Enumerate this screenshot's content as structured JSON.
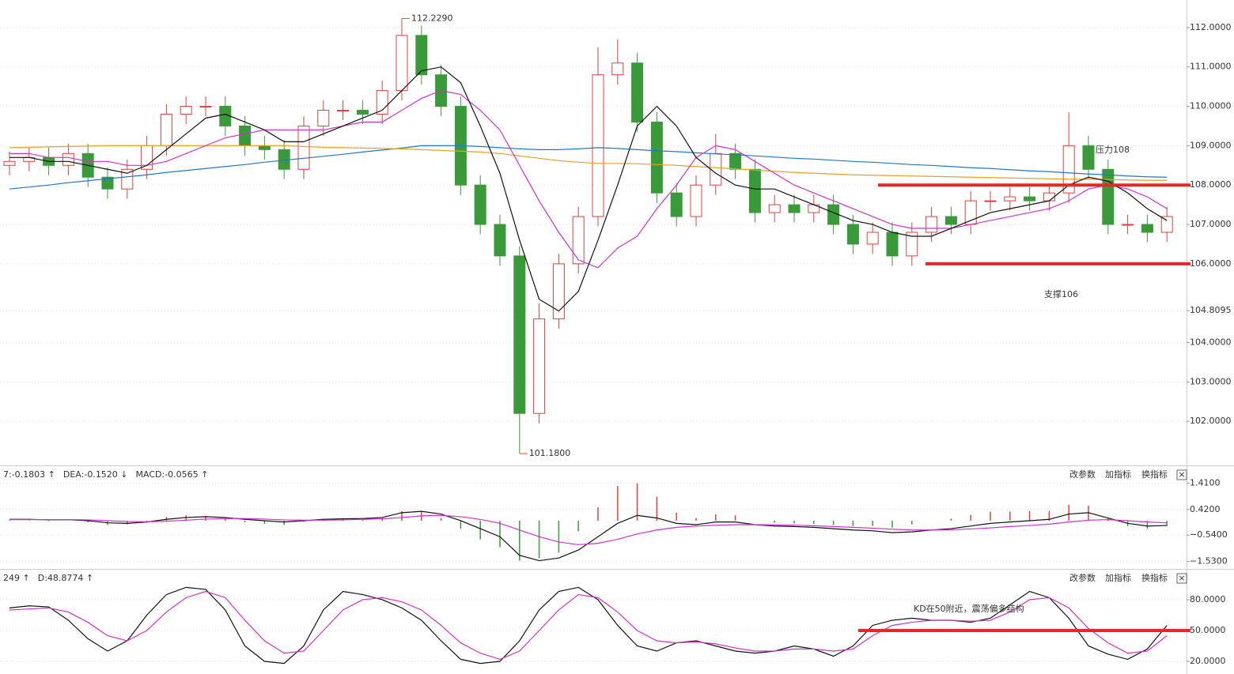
{
  "chart_data": [
    {
      "type": "candlestick",
      "open": [
        108.5,
        108.6,
        108.7,
        108.5,
        108.8,
        108.2,
        107.9,
        108.4,
        109.0,
        109.8,
        110.0,
        110.0,
        109.5,
        109.0,
        108.9,
        108.4,
        109.5,
        109.9,
        109.9,
        109.8,
        110.4,
        111.8,
        110.8,
        110.0,
        108.0,
        107.0,
        106.2,
        102.2,
        104.6,
        106.0,
        107.2,
        110.8,
        111.1,
        109.6,
        107.8,
        107.2,
        108.0,
        108.8,
        108.4,
        107.3,
        107.5,
        107.3,
        107.5,
        107.0,
        106.5,
        106.8,
        106.2,
        106.8,
        107.2,
        107.0,
        107.6,
        107.6,
        107.7,
        107.6,
        107.8,
        109.0,
        108.4,
        107.0,
        107.0,
        106.8
      ],
      "high": [
        108.85,
        108.95,
        108.95,
        109.05,
        109.05,
        108.45,
        108.65,
        109.25,
        110.05,
        110.25,
        110.25,
        110.25,
        109.75,
        109.25,
        109.15,
        109.75,
        110.15,
        110.15,
        110.15,
        110.65,
        112.229,
        112.05,
        111.05,
        110.25,
        108.25,
        107.25,
        106.45,
        105.0,
        106.25,
        107.45,
        111.5,
        111.7,
        111.35,
        109.85,
        108.05,
        108.25,
        109.3,
        109.05,
        108.65,
        107.75,
        107.75,
        107.75,
        107.75,
        107.25,
        107.05,
        107.05,
        107.05,
        107.45,
        107.45,
        107.85,
        107.85,
        107.95,
        107.95,
        108.05,
        109.85,
        109.25,
        108.65,
        107.25,
        107.25,
        107.45
      ],
      "low": [
        108.25,
        108.35,
        108.25,
        108.25,
        107.95,
        107.65,
        107.65,
        108.15,
        108.75,
        109.55,
        109.75,
        109.25,
        108.75,
        108.65,
        108.15,
        108.15,
        109.25,
        109.65,
        109.55,
        109.55,
        110.15,
        110.55,
        109.75,
        107.75,
        106.75,
        105.95,
        101.18,
        101.95,
        104.35,
        105.75,
        106.95,
        110.55,
        109.35,
        107.55,
        106.95,
        106.95,
        107.75,
        108.15,
        107.05,
        107.05,
        107.05,
        107.05,
        106.75,
        106.25,
        106.25,
        105.95,
        105.95,
        106.55,
        106.75,
        106.75,
        107.35,
        107.35,
        107.35,
        107.35,
        107.55,
        108.15,
        106.75,
        106.75,
        106.55,
        106.55
      ],
      "close": [
        108.6,
        108.7,
        108.5,
        108.8,
        108.2,
        107.9,
        108.4,
        109.0,
        109.8,
        110.0,
        110.0,
        109.5,
        109.0,
        108.9,
        108.4,
        109.5,
        109.9,
        109.9,
        109.8,
        110.4,
        111.8,
        110.8,
        110.0,
        108.0,
        107.0,
        106.2,
        102.2,
        104.6,
        106.0,
        107.2,
        110.8,
        111.1,
        109.6,
        107.8,
        107.2,
        108.0,
        108.8,
        108.4,
        107.3,
        107.5,
        107.3,
        107.5,
        107.0,
        106.5,
        106.8,
        106.2,
        106.8,
        107.2,
        107.0,
        107.6,
        107.6,
        107.7,
        107.6,
        107.8,
        109.0,
        108.4,
        107.0,
        107.0,
        106.8,
        107.2
      ],
      "up_color": "#e0403a",
      "down_color": "#3a9a3a",
      "lines": [
        {
          "color": "#1f78c8",
          "values": [
            107.9,
            107.95,
            108.0,
            108.06,
            108.11,
            108.16,
            108.21,
            108.26,
            108.32,
            108.37,
            108.42,
            108.47,
            108.52,
            108.58,
            108.63,
            108.68,
            108.73,
            108.78,
            108.84,
            108.89,
            108.94,
            109.0,
            109.0,
            109.0,
            108.98,
            108.95,
            108.92,
            108.9,
            108.9,
            108.92,
            108.95,
            108.93,
            108.9,
            108.87,
            108.85,
            108.82,
            108.79,
            108.77,
            108.74,
            108.71,
            108.68,
            108.66,
            108.63,
            108.6,
            108.58,
            108.55,
            108.52,
            108.5,
            108.47,
            108.44,
            108.42,
            108.39,
            108.36,
            108.34,
            108.31,
            108.28,
            108.26,
            108.23,
            108.21,
            108.2
          ]
        },
        {
          "color": "#e8a020",
          "values": [
            108.95,
            108.96,
            108.97,
            108.98,
            108.99,
            109.0,
            109.0,
            109.0,
            109.0,
            109.0,
            109.0,
            109.0,
            109.0,
            109.0,
            109.0,
            108.98,
            108.96,
            108.95,
            108.94,
            108.93,
            108.92,
            108.9,
            108.88,
            108.86,
            108.84,
            108.8,
            108.74,
            108.68,
            108.62,
            108.58,
            108.55,
            108.55,
            108.54,
            108.52,
            108.5,
            108.47,
            108.44,
            108.41,
            108.38,
            108.35,
            108.32,
            108.3,
            108.28,
            108.26,
            108.25,
            108.24,
            108.23,
            108.22,
            108.21,
            108.2,
            108.19,
            108.18,
            108.17,
            108.16,
            108.15,
            108.15,
            108.14,
            108.13,
            108.12,
            108.12
          ]
        },
        {
          "color": "#d030d0",
          "values": [
            108.8,
            108.8,
            108.7,
            108.7,
            108.6,
            108.6,
            108.5,
            108.5,
            108.6,
            108.8,
            109.0,
            109.2,
            109.3,
            109.4,
            109.4,
            109.4,
            109.4,
            109.5,
            109.6,
            109.6,
            109.9,
            110.2,
            110.4,
            110.3,
            109.9,
            109.4,
            108.5,
            107.6,
            106.8,
            106.1,
            105.9,
            106.4,
            106.7,
            107.4,
            108.0,
            108.7,
            109.0,
            108.9,
            108.6,
            108.3,
            108.0,
            107.8,
            107.6,
            107.4,
            107.2,
            107.0,
            106.9,
            106.9,
            106.9,
            107.0,
            107.1,
            107.2,
            107.3,
            107.4,
            107.6,
            107.9,
            108.0,
            107.9,
            107.7,
            107.4
          ]
        },
        {
          "color": "#111111",
          "values": [
            108.7,
            108.7,
            108.6,
            108.6,
            108.5,
            108.4,
            108.3,
            108.5,
            108.9,
            109.3,
            109.7,
            109.8,
            109.6,
            109.4,
            109.1,
            109.1,
            109.3,
            109.5,
            109.7,
            109.9,
            110.4,
            110.9,
            111.0,
            110.6,
            109.5,
            108.3,
            106.6,
            105.1,
            104.8,
            105.3,
            106.6,
            108.0,
            109.5,
            110.0,
            109.5,
            108.7,
            108.3,
            108.0,
            107.9,
            107.9,
            107.7,
            107.5,
            107.3,
            107.1,
            107.0,
            106.8,
            106.7,
            106.7,
            106.9,
            107.1,
            107.3,
            107.4,
            107.5,
            107.6,
            108.0,
            108.2,
            108.1,
            107.8,
            107.4,
            107.1
          ]
        }
      ],
      "extremes": [
        {
          "index": 20,
          "value": 112.229,
          "label": "112.2290"
        },
        {
          "index": 26,
          "value": 101.18,
          "label": "101.1800"
        }
      ],
      "annotations": [
        {
          "text": "压力108",
          "value": 108
        },
        {
          "text": "支撑106",
          "value": 106
        }
      ],
      "annotation_color": "#e8262a",
      "ylim": [
        100.9,
        112.7
      ],
      "yticks": [
        {
          "value": 102,
          "label": "102.0000"
        },
        {
          "value": 103,
          "label": "103.0000"
        },
        {
          "value": 104,
          "label": "104.0000"
        },
        {
          "value": 104.8095,
          "label": "104.8095"
        },
        {
          "value": 106,
          "label": "106.0000"
        },
        {
          "value": 107,
          "label": "107.0000"
        },
        {
          "value": 108,
          "label": "108.0000"
        },
        {
          "value": 109,
          "label": "109.0000"
        },
        {
          "value": 110,
          "label": "110.0000"
        },
        {
          "value": 111,
          "label": "111.0000"
        },
        {
          "value": 112,
          "label": "112.0000"
        }
      ],
      "grid": true
    },
    {
      "type": "macd",
      "header": [
        {
          "text": "7:-0.1803 ↑",
          "color": "#111111"
        },
        {
          "text": "DEA:-0.1520 ↓",
          "color": "#d030d0"
        },
        {
          "text": "MACD:-0.0565 ↑",
          "color": "#666666"
        }
      ],
      "buttons": [
        "改参数",
        "加指标",
        "换指标",
        "×"
      ],
      "histogram": [
        0.02,
        0.02,
        -0.02,
        0,
        -0.06,
        -0.16,
        -0.14,
        -0.02,
        0.14,
        0.2,
        0.18,
        0.08,
        -0.06,
        -0.12,
        -0.16,
        -0.04,
        0.06,
        0.08,
        0.06,
        0.1,
        0.36,
        0.34,
        0.1,
        -0.3,
        -0.7,
        -1.0,
        -1.5,
        -1.4,
        -1.2,
        -0.4,
        0.5,
        1.3,
        1.4,
        0.9,
        0.3,
        0.1,
        0.24,
        0.2,
        0,
        -0.08,
        -0.1,
        -0.12,
        -0.16,
        -0.2,
        -0.2,
        -0.26,
        -0.14,
        0,
        0.08,
        0.22,
        0.34,
        0.34,
        0.36,
        0.36,
        0.6,
        0.56,
        0.12,
        -0.2,
        -0.3,
        -0.2
      ],
      "lines": [
        {
          "color": "#111111",
          "values": [
            0.05,
            0.05,
            0.03,
            0.04,
            0.0,
            -0.08,
            -0.1,
            -0.05,
            0.05,
            0.12,
            0.15,
            0.12,
            0.05,
            0.0,
            -0.05,
            0.0,
            0.05,
            0.07,
            0.08,
            0.12,
            0.3,
            0.35,
            0.25,
            0.0,
            -0.3,
            -0.6,
            -1.3,
            -1.5,
            -1.4,
            -1.1,
            -0.6,
            -0.1,
            0.2,
            0.1,
            -0.1,
            -0.15,
            -0.05,
            -0.05,
            -0.15,
            -0.2,
            -0.22,
            -0.25,
            -0.3,
            -0.35,
            -0.38,
            -0.45,
            -0.42,
            -0.35,
            -0.3,
            -0.2,
            -0.1,
            -0.05,
            0.0,
            0.05,
            0.25,
            0.3,
            0.1,
            -0.1,
            -0.2,
            -0.18
          ]
        },
        {
          "color": "#d030d0",
          "values": [
            0.04,
            0.04,
            0.04,
            0.04,
            0.03,
            0.0,
            -0.03,
            -0.04,
            -0.02,
            0.02,
            0.06,
            0.08,
            0.08,
            0.06,
            0.03,
            0.02,
            0.02,
            0.03,
            0.05,
            0.07,
            0.12,
            0.18,
            0.2,
            0.15,
            0.05,
            -0.1,
            -0.35,
            -0.6,
            -0.8,
            -0.9,
            -0.85,
            -0.7,
            -0.5,
            -0.35,
            -0.25,
            -0.2,
            -0.17,
            -0.15,
            -0.15,
            -0.16,
            -0.17,
            -0.19,
            -0.22,
            -0.25,
            -0.28,
            -0.32,
            -0.35,
            -0.35,
            -0.34,
            -0.31,
            -0.27,
            -0.22,
            -0.18,
            -0.13,
            -0.05,
            0.02,
            0.04,
            0.0,
            -0.05,
            -0.08
          ]
        }
      ],
      "up_color": "#e0403a",
      "down_color": "#3a9a3a",
      "ylim": [
        -1.75,
        1.6
      ],
      "yticks": [
        {
          "value": 1.41,
          "label": "1.4100"
        },
        {
          "value": 0.42,
          "label": "0.4200"
        },
        {
          "value": -0.54,
          "label": "−0.5400"
        },
        {
          "value": -1.53,
          "label": "−1.5300"
        }
      ]
    },
    {
      "type": "kd",
      "header": [
        {
          "text": "249 ↑",
          "color": "#111111"
        },
        {
          "text": "D:48.8774 ↑",
          "color": "#d030d0"
        }
      ],
      "buttons": [
        "改参数",
        "加指标",
        "换指标",
        "×"
      ],
      "lines": [
        {
          "color": "#111111",
          "values": [
            72,
            74,
            73,
            60,
            42,
            30,
            40,
            65,
            85,
            92,
            90,
            70,
            35,
            20,
            18,
            35,
            70,
            88,
            85,
            80,
            72,
            60,
            40,
            22,
            18,
            20,
            40,
            70,
            88,
            92,
            80,
            55,
            35,
            30,
            38,
            40,
            35,
            30,
            28,
            30,
            35,
            32,
            25,
            35,
            55,
            60,
            62,
            60,
            60,
            58,
            62,
            75,
            88,
            82,
            62,
            35,
            27,
            22,
            32,
            55
          ]
        },
        {
          "color": "#d030d0",
          "values": [
            70,
            71,
            72,
            68,
            58,
            45,
            40,
            50,
            68,
            82,
            88,
            82,
            60,
            40,
            28,
            30,
            50,
            70,
            80,
            82,
            78,
            70,
            55,
            38,
            28,
            22,
            30,
            50,
            70,
            85,
            82,
            68,
            50,
            40,
            38,
            39,
            37,
            33,
            30,
            30,
            32,
            32,
            30,
            32,
            45,
            55,
            58,
            60,
            60,
            59,
            60,
            68,
            80,
            82,
            72,
            52,
            38,
            28,
            30,
            45
          ]
        }
      ],
      "annotations": [
        {
          "text": "KD在50附近，震荡偏多结构",
          "value": 50
        }
      ],
      "annotation_color": "#e8262a",
      "ylim": [
        7.7,
        103.8
      ],
      "yticks": [
        {
          "value": 80,
          "label": "80.0000"
        },
        {
          "value": 50,
          "label": "50.0000"
        },
        {
          "value": 20,
          "label": "20.0000"
        }
      ]
    }
  ]
}
